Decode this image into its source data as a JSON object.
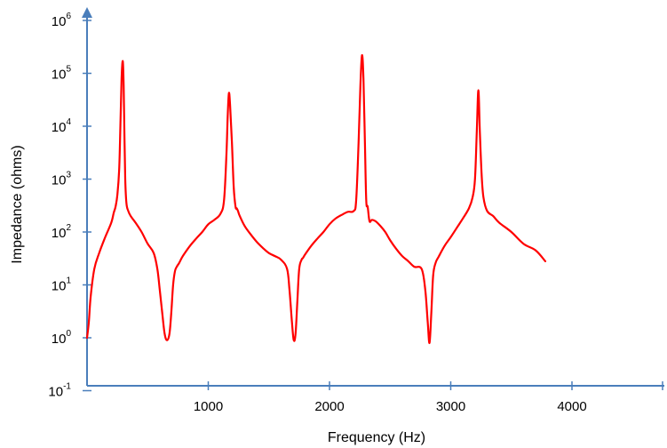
{
  "chart_data": {
    "type": "line",
    "title": "",
    "xlabel": "Frequency (Hz)",
    "ylabel": "Impedance (ohms)",
    "x_ticks": [
      1000,
      2000,
      3000,
      4000
    ],
    "xlim": [
      0,
      4800
    ],
    "ylim": [
      0.1,
      1000000
    ],
    "y_scale": "log",
    "y_ticks": [
      {
        "base": "10",
        "exp": "-1",
        "value": 0.1
      },
      {
        "base": "10",
        "exp": "0",
        "value": 1
      },
      {
        "base": "10",
        "exp": "1",
        "value": 10
      },
      {
        "base": "10",
        "exp": "2",
        "value": 100
      },
      {
        "base": "10",
        "exp": "3",
        "value": 1000
      },
      {
        "base": "10",
        "exp": "4",
        "value": 10000
      },
      {
        "base": "10",
        "exp": "5",
        "value": 100000
      },
      {
        "base": "10",
        "exp": "6",
        "value": 1000000
      }
    ],
    "grid": false,
    "legend": "none",
    "axis_color": "#4a7ebb",
    "series": [
      {
        "color": "#ff0000",
        "x": [
          0,
          15,
          30,
          60,
          100,
          150,
          200,
          220,
          235,
          250,
          265,
          275,
          285,
          295,
          302,
          308,
          315,
          325,
          340,
          360,
          400,
          450,
          500,
          550,
          580,
          600,
          620,
          640,
          660,
          680,
          695,
          710,
          725,
          740,
          760,
          780,
          800,
          850,
          900,
          950,
          1000,
          1050,
          1100,
          1130,
          1150,
          1160,
          1170,
          1180,
          1195,
          1210,
          1225,
          1235,
          1245,
          1260,
          1300,
          1350,
          1400,
          1450,
          1500,
          1550,
          1600,
          1650,
          1670,
          1690,
          1705,
          1720,
          1735,
          1750,
          1770,
          1780,
          1800,
          1850,
          1900,
          1950,
          2000,
          2050,
          2100,
          2150,
          2200,
          2220,
          2240,
          2255,
          2268,
          2280,
          2292,
          2303,
          2315,
          2330,
          2350,
          2380,
          2420,
          2460,
          2500,
          2550,
          2600,
          2650,
          2700,
          2760,
          2790,
          2810,
          2825,
          2840,
          2855,
          2875,
          2900,
          2950,
          3000,
          3050,
          3100,
          3150,
          3180,
          3200,
          3215,
          3228,
          3240,
          3255,
          3270,
          3300,
          3350,
          3400,
          3500,
          3600,
          3700,
          3780
        ],
        "y": [
          1,
          2,
          6,
          20,
          40,
          80,
          150,
          230,
          300,
          500,
          1500,
          10000,
          80000,
          170000,
          60000,
          8000,
          1000,
          350,
          250,
          200,
          150,
          100,
          60,
          40,
          20,
          8,
          3,
          1.2,
          0.9,
          1.2,
          3,
          10,
          18,
          22,
          26,
          32,
          38,
          55,
          75,
          100,
          140,
          170,
          220,
          400,
          3000,
          15000,
          42000,
          25000,
          5000,
          700,
          300,
          280,
          250,
          200,
          130,
          90,
          65,
          50,
          40,
          35,
          30,
          20,
          8,
          2,
          0.9,
          1.2,
          5,
          20,
          30,
          32,
          38,
          55,
          75,
          100,
          140,
          180,
          210,
          240,
          250,
          400,
          5000,
          60000,
          220000,
          80000,
          5000,
          400,
          300,
          160,
          170,
          160,
          130,
          100,
          70,
          48,
          35,
          28,
          22,
          20,
          8,
          2,
          0.8,
          3,
          15,
          26,
          34,
          55,
          80,
          120,
          180,
          280,
          450,
          1000,
          8000,
          48000,
          8000,
          1200,
          450,
          250,
          200,
          150,
          100,
          60,
          45,
          28
        ]
      }
    ]
  }
}
